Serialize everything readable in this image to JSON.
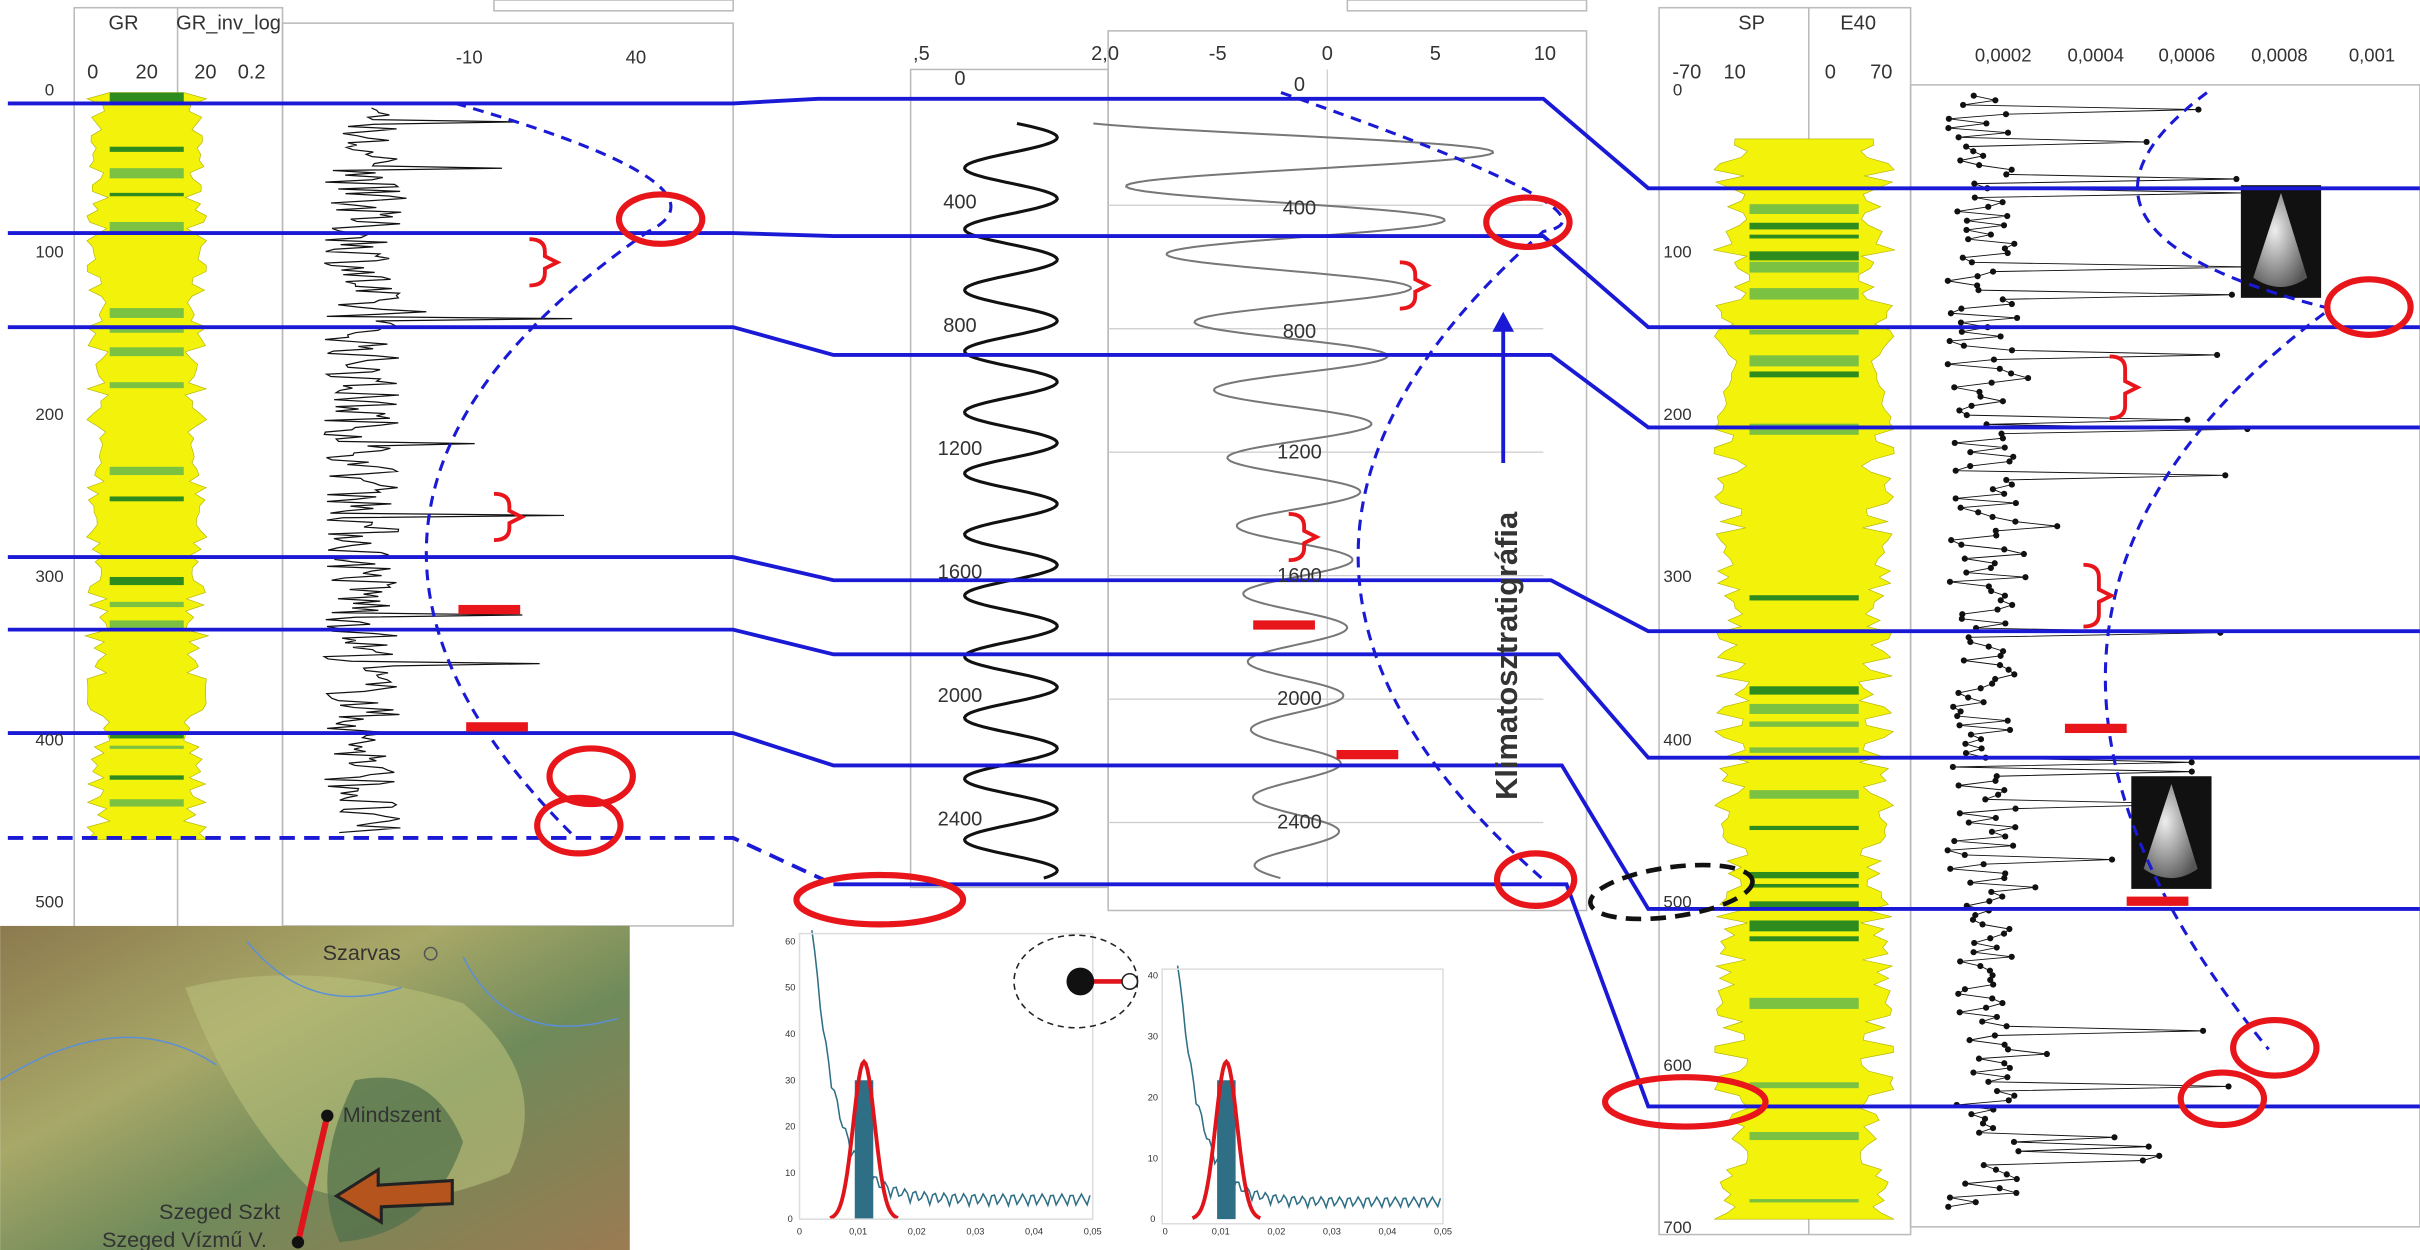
{
  "left_log": {
    "headers": [
      "GR",
      "GR_inv_log"
    ],
    "scale_labels": [
      "0",
      "20",
      "20",
      "0.2"
    ],
    "curve_scale": [
      "-10",
      "40"
    ],
    "depths": [
      "0",
      "100",
      "200",
      "300",
      "400",
      "500"
    ]
  },
  "middle_log": {
    "top_scale": [
      ",5",
      "2,0",
      "-5",
      "0",
      "5",
      "10"
    ],
    "left_depths": [
      "0",
      "400",
      "800",
      "1200",
      "1600",
      "2000",
      "2400"
    ],
    "right_depths": [
      "0",
      "400",
      "800",
      "1200",
      "1600",
      "2000",
      "2400"
    ],
    "annotation": "Klimatosztratigráfia"
  },
  "right_log": {
    "headers": [
      "SP",
      "E40"
    ],
    "scale_labels": [
      "-70",
      "10",
      "0",
      "70"
    ],
    "top_scale": [
      "0,0002",
      "0,0004",
      "0,0006",
      "0,0008",
      "0,001"
    ],
    "depths": [
      "0",
      "100",
      "200",
      "300",
      "400",
      "500",
      "600",
      "700"
    ]
  },
  "spectra": [
    {
      "yticks": [
        "60",
        "50",
        "40",
        "30",
        "20",
        "10",
        "0"
      ],
      "xticks": [
        "0",
        "0,01",
        "0,02",
        "0,03",
        "0,04",
        "0,05"
      ]
    },
    {
      "yticks": [
        "40",
        "30",
        "20",
        "10",
        "0"
      ],
      "xticks": [
        "0",
        "0,01",
        "0,02",
        "0,03",
        "0,04",
        "0,05"
      ]
    }
  ],
  "map": {
    "places": [
      "Szarvas",
      "Mindszent",
      "Szeged Szkt",
      "Szeged Vízmű V."
    ]
  }
}
